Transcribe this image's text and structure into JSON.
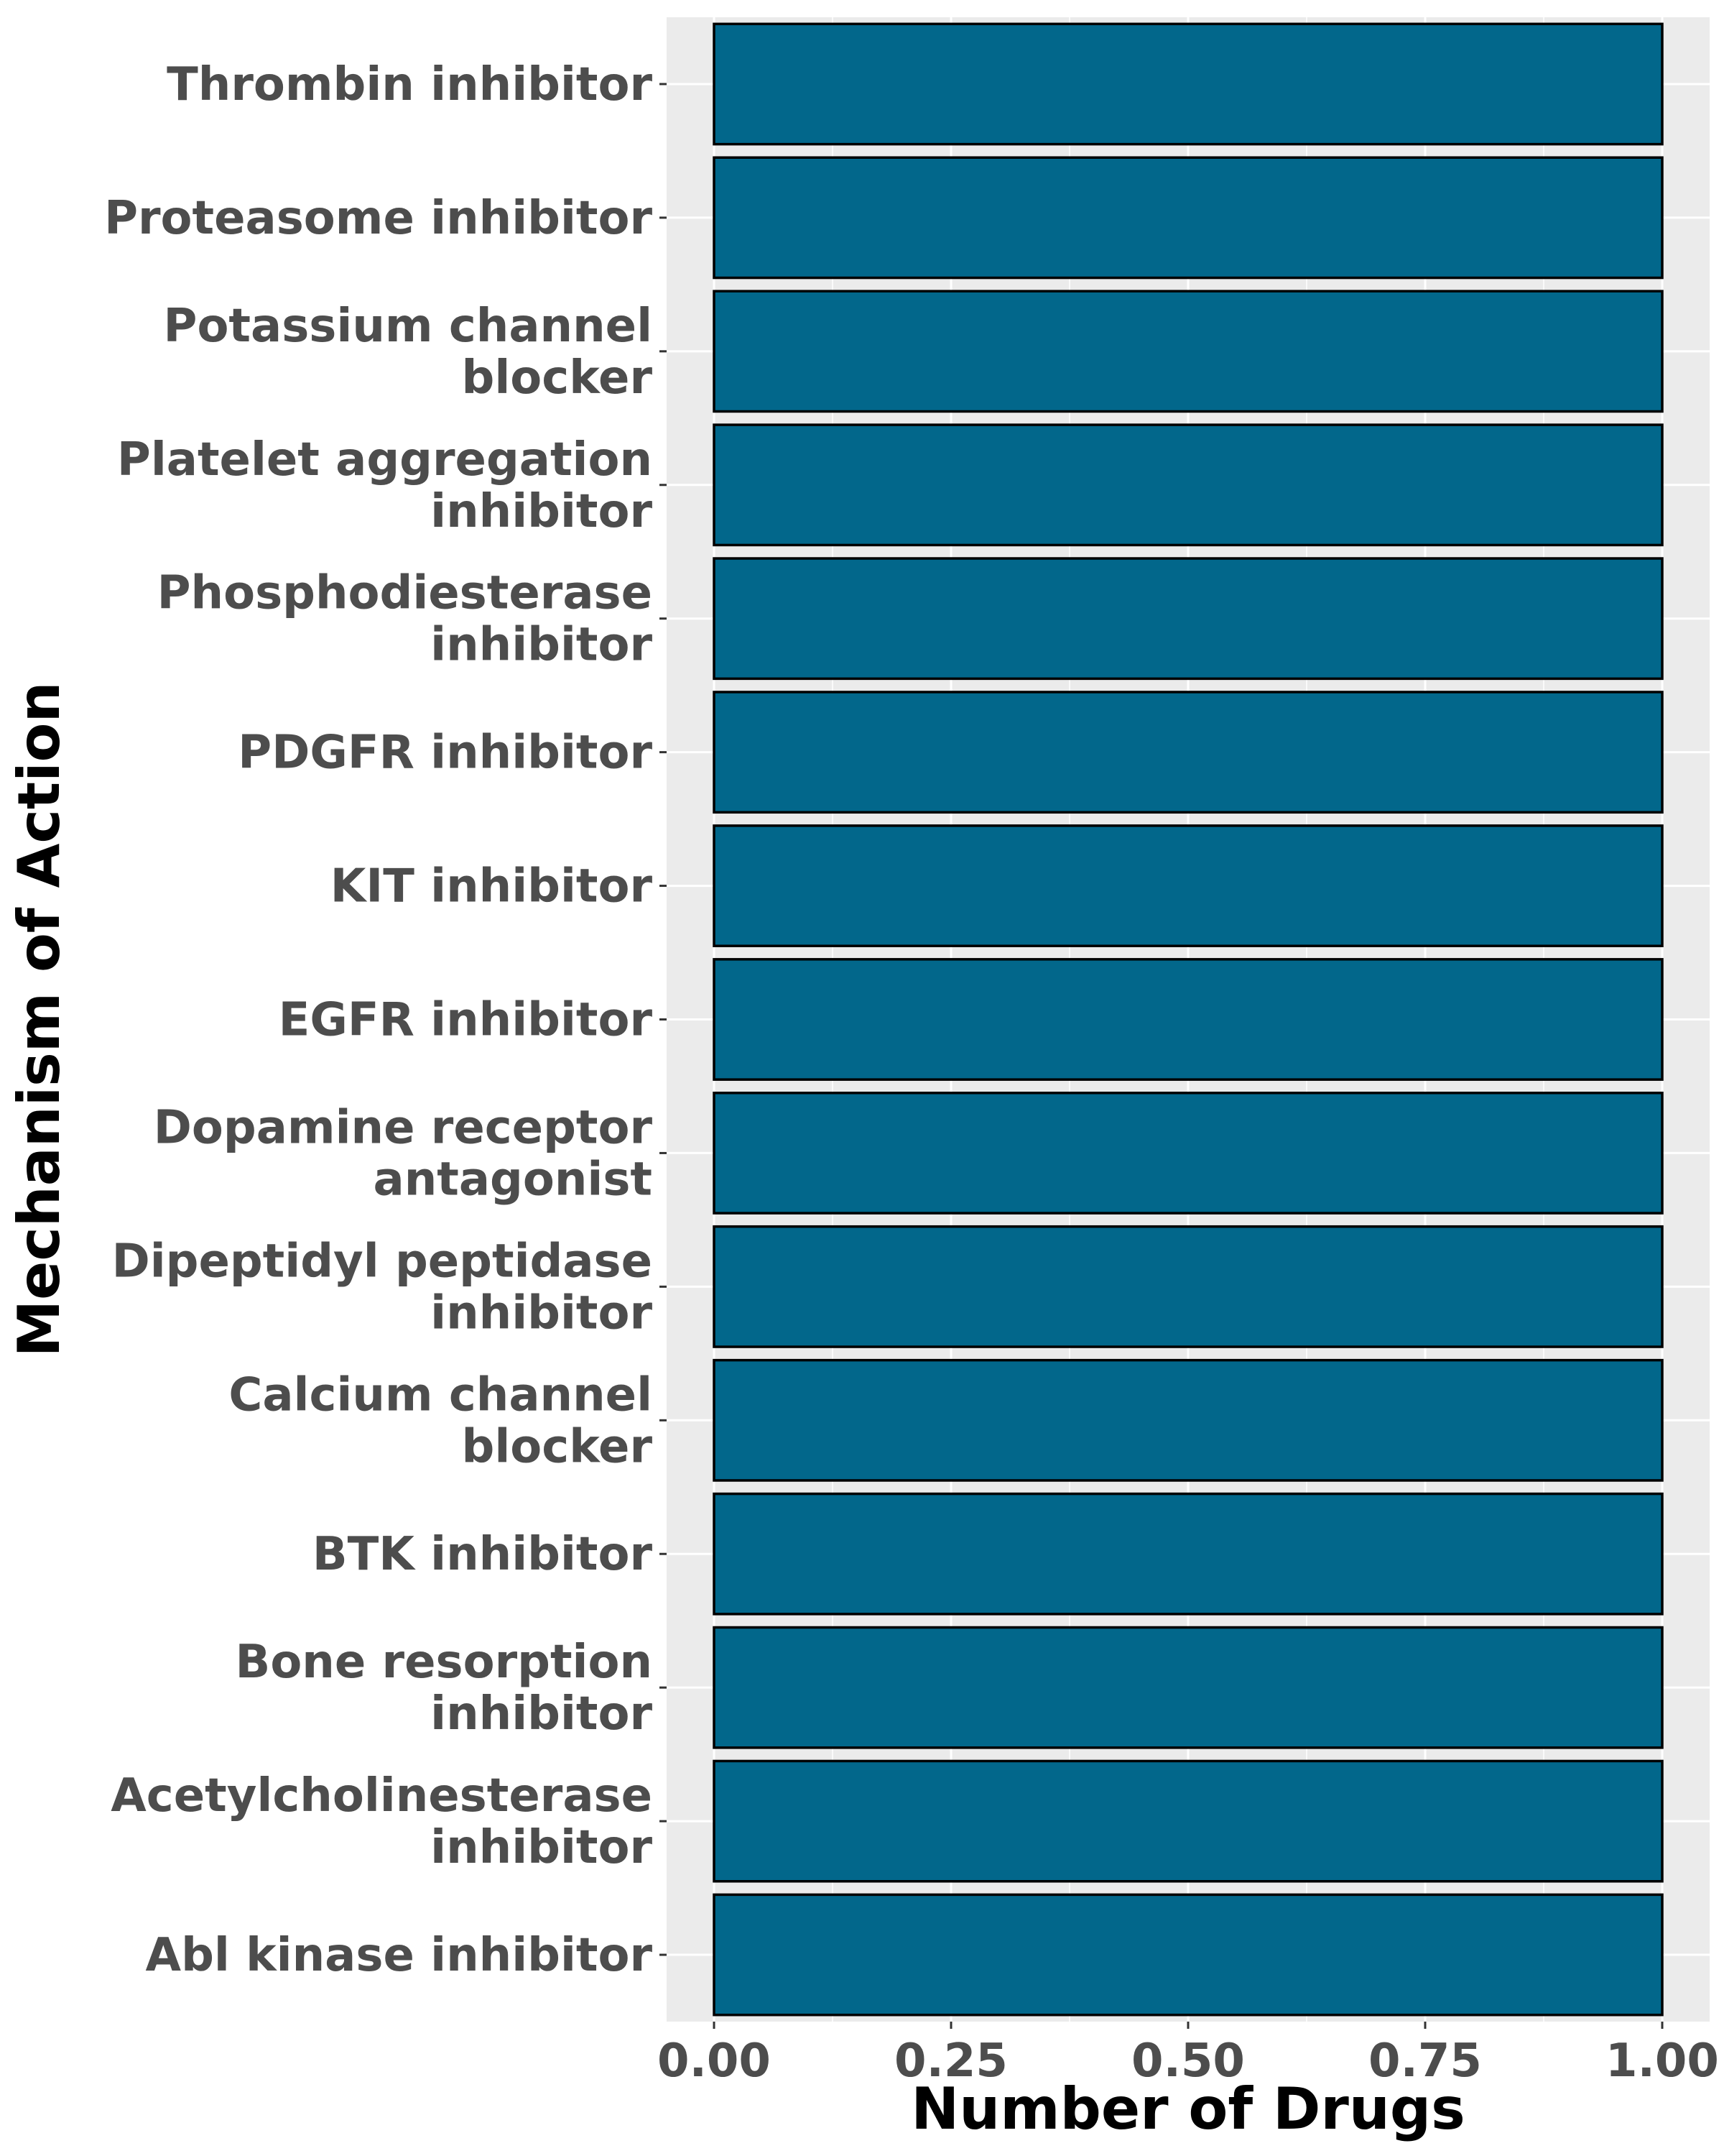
{
  "chart_data": {
    "type": "bar",
    "orientation": "horizontal",
    "title": "",
    "xlabel": "Number of Drugs",
    "ylabel": "Mechanism of Action",
    "xlim": [
      -0.05,
      1.05
    ],
    "xticks": [
      "0.00",
      "0.25",
      "0.50",
      "0.75",
      "1.00"
    ],
    "grid": true,
    "legend": "none",
    "colors": {
      "bar_fill": "#02678b",
      "bar_stroke": "#000000",
      "panel_background": "#ebebeb",
      "grid": "#ffffff",
      "tick_text": "#4d4d4d"
    },
    "categories": [
      "Thrombin inhibitor",
      "Proteasome inhibitor",
      "Potassium channel blocker",
      "Platelet aggregation inhibitor",
      "Phosphodiesterase inhibitor",
      "PDGFR inhibitor",
      "KIT inhibitor",
      "EGFR inhibitor",
      "Dopamine receptor antagonist",
      "Dipeptidyl peptidase inhibitor",
      "Calcium channel blocker",
      "BTK inhibitor",
      "Bone resorption inhibitor",
      "Acetylcholinesterase inhibitor",
      "Abl kinase inhibitor"
    ],
    "category_label_lines": [
      [
        "Thrombin inhibitor"
      ],
      [
        "Proteasome inhibitor"
      ],
      [
        "Potassium channel",
        "blocker"
      ],
      [
        "Platelet aggregation",
        "inhibitor"
      ],
      [
        "Phosphodiesterase",
        "inhibitor"
      ],
      [
        "PDGFR inhibitor"
      ],
      [
        "KIT inhibitor"
      ],
      [
        "EGFR inhibitor"
      ],
      [
        "Dopamine receptor",
        "antagonist"
      ],
      [
        "Dipeptidyl peptidase",
        "inhibitor"
      ],
      [
        "Calcium channel",
        "blocker"
      ],
      [
        "BTK inhibitor"
      ],
      [
        "Bone resorption",
        "inhibitor"
      ],
      [
        "Acetylcholinesterase",
        "inhibitor"
      ],
      [
        "Abl kinase inhibitor"
      ]
    ],
    "values": [
      1,
      1,
      1,
      1,
      1,
      1,
      1,
      1,
      1,
      1,
      1,
      1,
      1,
      1,
      1
    ]
  }
}
